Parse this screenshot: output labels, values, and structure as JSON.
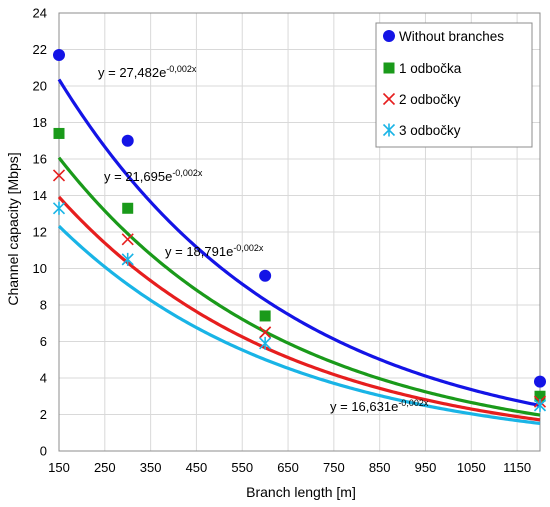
{
  "chart_data": {
    "type": "scatter",
    "xlabel": "Branch length [m]",
    "ylabel": "Channel capacity [Mbps]",
    "xlim": [
      150,
      1200
    ],
    "ylim": [
      0,
      24
    ],
    "x_ticks": [
      "150",
      "250",
      "350",
      "450",
      "550",
      "650",
      "750",
      "850",
      "950",
      "1050",
      "1150"
    ],
    "y_ticks": [
      "0",
      "2",
      "4",
      "6",
      "8",
      "10",
      "12",
      "14",
      "16",
      "18",
      "20",
      "22",
      "24"
    ],
    "grid": true,
    "legend_position": "top-right",
    "series": [
      {
        "name": "Without branches",
        "marker": "circle",
        "color": "#1414e6",
        "x": [
          150,
          300,
          600,
          1200
        ],
        "y": [
          21.7,
          17.0,
          9.6,
          3.8
        ],
        "trend": {
          "a": 27.482,
          "b": -0.002,
          "label": "y = 27,482e",
          "exp": "-0,002x"
        }
      },
      {
        "name": "1 odbočka",
        "marker": "square",
        "color": "#1a9a1a",
        "x": [
          150,
          300,
          600,
          1200
        ],
        "y": [
          17.4,
          13.3,
          7.4,
          3.0
        ],
        "trend": {
          "a": 21.695,
          "b": -0.002,
          "label": "y = 21,695e",
          "exp": "-0,002x"
        }
      },
      {
        "name": "2 odbočky",
        "marker": "x",
        "color": "#e61e1e",
        "x": [
          150,
          300,
          600,
          1200
        ],
        "y": [
          15.1,
          11.6,
          6.5,
          2.7
        ],
        "trend": {
          "a": 18.791,
          "b": -0.002,
          "label": "y = 18,791e",
          "exp": "-0,002x"
        }
      },
      {
        "name": "3 odbočky",
        "marker": "asterisk",
        "color": "#19b4e6",
        "x": [
          150,
          300,
          600,
          1200
        ],
        "y": [
          13.3,
          10.5,
          5.9,
          2.5
        ],
        "trend": {
          "a": 16.631,
          "b": -0.002,
          "label": "y = 16,631e",
          "exp": "-0,002x"
        }
      }
    ]
  }
}
